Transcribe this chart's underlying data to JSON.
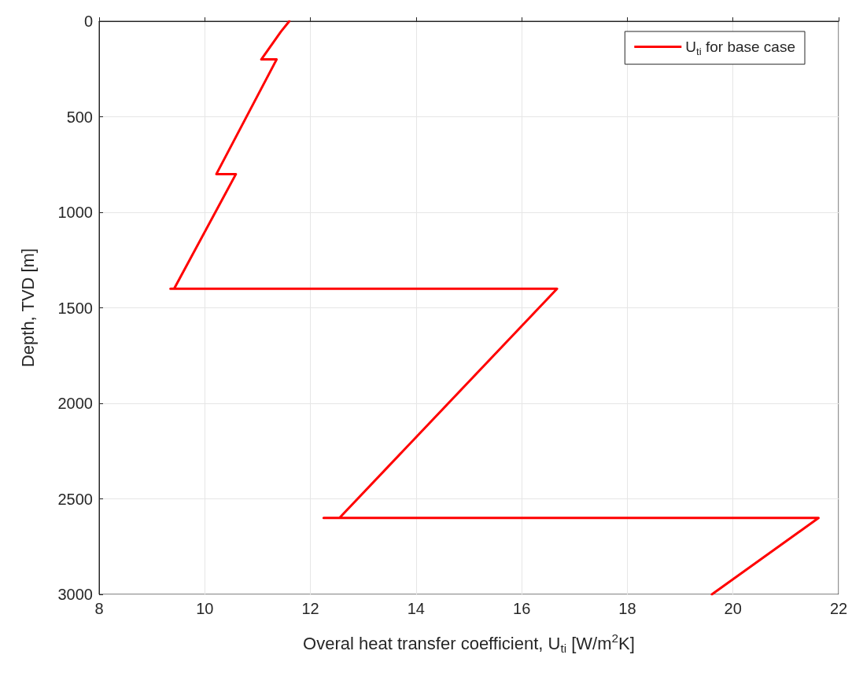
{
  "chart_data": {
    "type": "line",
    "xlabel": "Overal heat transfer coefficient, U$_{ti}$ [W/m$^{2}$K]",
    "ylabel": "Depth, TVD [m]",
    "series": [
      {
        "name": "U$_{ti}$ for base case",
        "color": "#ff0000",
        "x": [
          11.6,
          11.44,
          11.07,
          11.36,
          10.22,
          10.59,
          9.42,
          9.35,
          16.67,
          12.55,
          12.25,
          21.62,
          19.6
        ],
        "values": [
          0,
          55,
          200,
          200,
          800,
          800,
          1400,
          1400,
          1400,
          2600,
          2600,
          2600,
          3000
        ]
      }
    ],
    "xlim": [
      8,
      22
    ],
    "xticks": [
      8,
      10,
      12,
      14,
      16,
      18,
      20,
      22
    ],
    "ylim": [
      3000,
      0
    ],
    "yticks": [
      0,
      500,
      1000,
      1500,
      2000,
      2500,
      3000
    ],
    "grid": true,
    "legend": "top right",
    "marker": "none",
    "line_style": "solid"
  }
}
